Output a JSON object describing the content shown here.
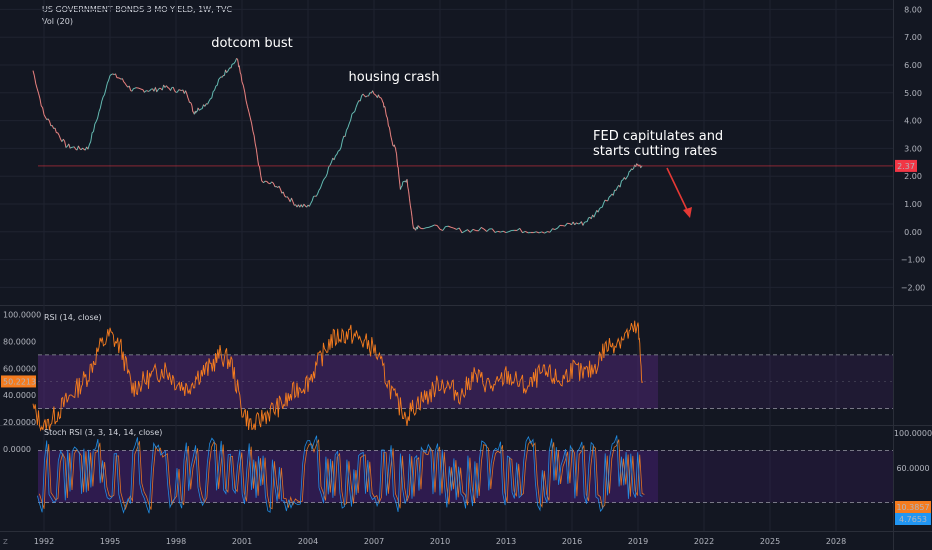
{
  "header": {
    "symbol_title": "US GOVERNMENT BONDS 3 MO YIELD, 1W, TVC",
    "volume_label": "Vol (20)"
  },
  "colors": {
    "background": "#131722",
    "grid": "#1f2330",
    "price_up": "#26a69a",
    "price_down": "#ef5350",
    "price_line": "#d9d9d9",
    "rsi_line": "#f57c1f",
    "rsi_band": "#5b2a86",
    "stoch_k": "#2196f3",
    "stoch_d": "#f57c1f",
    "stoch_band": "#4a1f7a",
    "current_level": "#f23645",
    "annotation_arrow": "#e53935"
  },
  "corner_button": "Z",
  "chart_data": [
    {
      "type": "line",
      "title": "US GOVERNMENT BONDS 3 MO YIELD, 1W, TVC",
      "xlabel": "",
      "ylabel": "",
      "x": [
        1991.5,
        1992.0,
        1992.5,
        1993.0,
        1993.5,
        1994.0,
        1994.5,
        1995.0,
        1995.5,
        1996.0,
        1996.5,
        1997.0,
        1997.5,
        1998.0,
        1998.5,
        1998.8,
        1999.0,
        1999.5,
        2000.0,
        2000.4,
        2000.8,
        2001.0,
        2001.5,
        2001.9,
        2002.5,
        2003.0,
        2003.5,
        2004.0,
        2004.5,
        2005.0,
        2005.5,
        2006.0,
        2006.5,
        2007.0,
        2007.4,
        2007.6,
        2007.8,
        2008.0,
        2008.2,
        2008.5,
        2008.8,
        2009.0,
        2010.0,
        2011.0,
        2012.0,
        2013.0,
        2014.0,
        2015.0,
        2015.9,
        2016.5,
        2017.0,
        2017.5,
        2018.0,
        2018.5,
        2018.9,
        2019.2
      ],
      "y": [
        5.8,
        4.2,
        3.7,
        3.1,
        3.0,
        3.0,
        4.3,
        5.7,
        5.5,
        5.1,
        5.1,
        5.1,
        5.2,
        5.1,
        5.0,
        4.3,
        4.4,
        4.7,
        5.5,
        5.9,
        6.2,
        5.4,
        3.6,
        1.8,
        1.7,
        1.3,
        0.95,
        0.9,
        1.5,
        2.4,
        3.1,
        4.2,
        4.9,
        5.0,
        4.7,
        4.1,
        3.3,
        2.9,
        1.6,
        1.9,
        0.1,
        0.2,
        0.15,
        0.05,
        0.08,
        0.05,
        0.04,
        0.02,
        0.3,
        0.3,
        0.6,
        1.1,
        1.5,
        2.0,
        2.4,
        2.37
      ],
      "ylim": [
        -2.5,
        8.0
      ],
      "ticks_y": [
        "8.00",
        "7.00",
        "6.00",
        "5.00",
        "4.00",
        "3.00",
        "2.00",
        "1.00",
        "0.00",
        "−1.00",
        "−2.00"
      ],
      "ticks_x": [
        "1992",
        "1995",
        "1998",
        "2001",
        "2004",
        "2007",
        "2010",
        "2013",
        "2016",
        "2019",
        "2022",
        "2025",
        "2028"
      ],
      "current_value": "2.37",
      "annotations": [
        "dotcom bust",
        "housing crash",
        "FED capitulates and",
        "starts cutting rates"
      ]
    },
    {
      "type": "line",
      "title": "RSI (14, close)",
      "xlabel": "",
      "ylabel": "",
      "x": [
        1991.5,
        1992.0,
        1992.5,
        1993.0,
        1993.5,
        1994.0,
        1994.5,
        1995.0,
        1995.5,
        1996.0,
        1996.5,
        1997.0,
        1997.5,
        1998.0,
        1998.5,
        1999.0,
        1999.5,
        2000.0,
        2000.5,
        2001.0,
        2001.5,
        2002.0,
        2002.5,
        2003.0,
        2003.5,
        2004.0,
        2004.5,
        2005.0,
        2005.5,
        2006.0,
        2006.5,
        2007.0,
        2007.5,
        2008.0,
        2008.5,
        2009.0,
        2009.5,
        2010.0,
        2010.5,
        2011.0,
        2011.5,
        2012.0,
        2012.5,
        2013.0,
        2013.5,
        2014.0,
        2014.5,
        2015.0,
        2015.5,
        2016.0,
        2016.5,
        2017.0,
        2017.5,
        2018.0,
        2018.5,
        2019.0,
        2019.2
      ],
      "y": [
        30,
        15,
        25,
        35,
        45,
        55,
        75,
        85,
        75,
        45,
        50,
        55,
        60,
        50,
        45,
        55,
        60,
        70,
        65,
        30,
        15,
        25,
        30,
        35,
        45,
        50,
        65,
        80,
        85,
        85,
        80,
        75,
        55,
        35,
        25,
        35,
        40,
        50,
        45,
        40,
        55,
        50,
        45,
        55,
        50,
        45,
        55,
        55,
        50,
        60,
        55,
        60,
        75,
        80,
        85,
        90,
        50.2213
      ],
      "ylim": [
        0,
        100
      ],
      "bands": [
        30,
        70
      ],
      "ticks_y": [
        "100.0000",
        "80.0000",
        "60.0000",
        "40.0000",
        "20.0000",
        "0.0000"
      ],
      "current_value": "50.2213"
    },
    {
      "type": "line",
      "title": "Stoch RSI (3, 3, 14, 14, close)",
      "xlabel": "",
      "ylabel": "",
      "ylim": [
        0,
        100
      ],
      "bands": [
        20,
        80
      ],
      "ticks_y": [
        "100.0000",
        "60.0000"
      ],
      "oscillation": "rapid oscillation between about 5 and 100 from 1992 to 2019",
      "current_values": [
        "10.3857",
        "4.7653"
      ],
      "series": [
        {
          "name": "",
          "color_key": "stoch_k"
        },
        {
          "name": "",
          "color_key": "stoch_d"
        }
      ]
    }
  ]
}
